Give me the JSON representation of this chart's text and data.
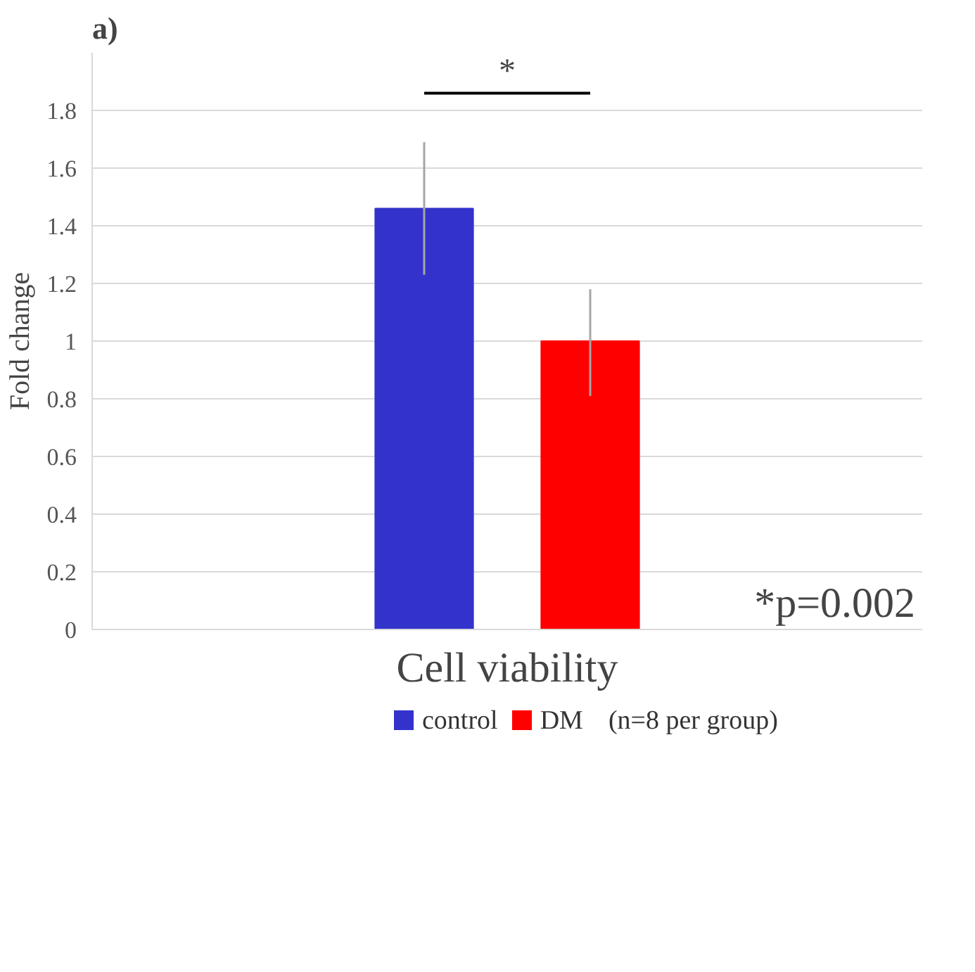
{
  "chart_data": {
    "type": "bar",
    "title": "a)",
    "ylabel": "Fold change",
    "categories": [
      "Cell viability"
    ],
    "series": [
      {
        "name": "control",
        "color": "#3333cc",
        "values": [
          1.46
        ],
        "errors": [
          [
            1.23,
            1.69
          ]
        ]
      },
      {
        "name": "DM",
        "color": "#ff0000",
        "values": [
          1.0
        ],
        "errors": [
          [
            0.81,
            1.18
          ]
        ]
      }
    ],
    "ylim": [
      0,
      2.0
    ],
    "yticks": [
      0,
      0.2,
      0.4,
      0.6,
      0.8,
      1,
      1.2,
      1.4,
      1.6,
      1.8
    ],
    "grid": "y",
    "legend": "bottom",
    "annotations": [
      "*",
      "*p=0.002",
      "(n=8 per group)"
    ]
  }
}
